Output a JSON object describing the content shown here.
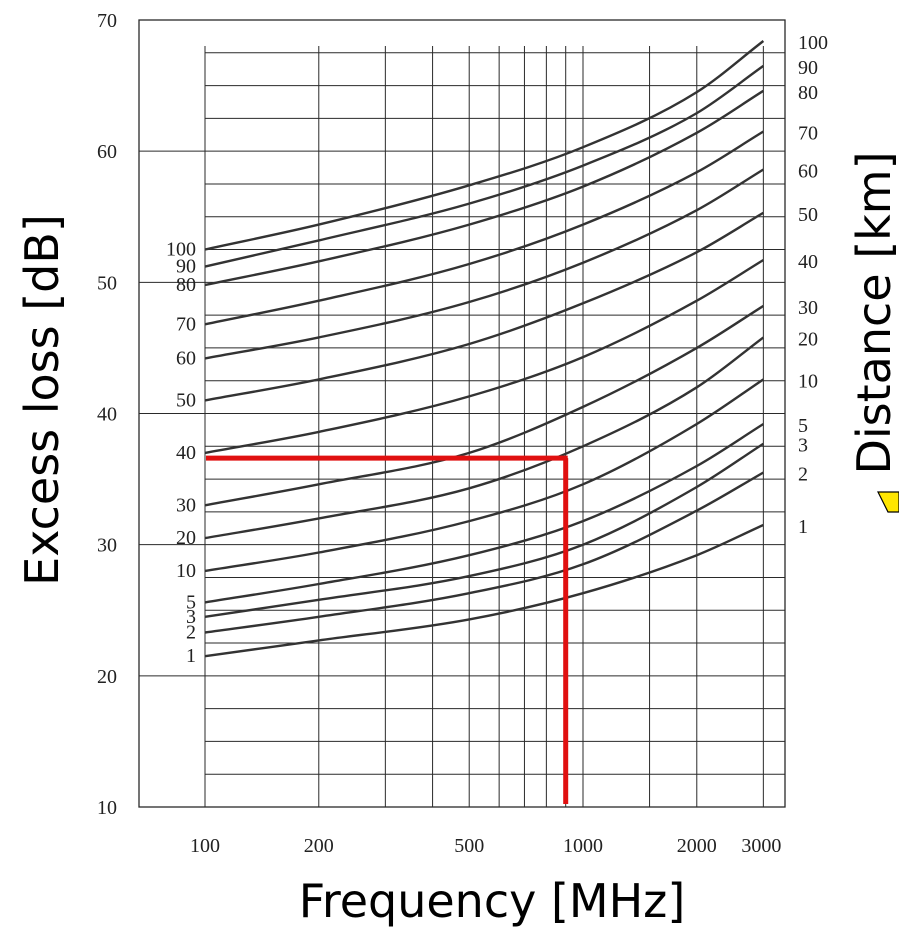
{
  "chart_data": {
    "type": "line",
    "xlabel": "Frequency [MHz]",
    "ylabel_left": "Excess loss [dB]",
    "ylabel_right": "Distance [km]",
    "x_scale": "log",
    "xlim": [
      100,
      3000
    ],
    "ylim": [
      10,
      70
    ],
    "x_ticks": [
      "100",
      "200",
      "500",
      "1000",
      "2000",
      "3000"
    ],
    "y_ticks": [
      "10",
      "20",
      "30",
      "40",
      "50",
      "60",
      "70"
    ],
    "legend_position": "curve labels at left and right ends",
    "series": [
      {
        "name": "1",
        "x": [
          100,
          200,
          500,
          1000,
          2000,
          3000
        ],
        "y": [
          21.5,
          22.7,
          24.3,
          26.3,
          29.2,
          31.5
        ]
      },
      {
        "name": "2",
        "x": [
          100,
          200,
          500,
          1000,
          2000,
          3000
        ],
        "y": [
          23.3,
          24.5,
          26.3,
          28.5,
          32.6,
          35.5
        ]
      },
      {
        "name": "3",
        "x": [
          100,
          200,
          500,
          1000,
          2000,
          3000
        ],
        "y": [
          24.5,
          25.8,
          27.6,
          30.0,
          34.4,
          37.7
        ]
      },
      {
        "name": "5",
        "x": [
          100,
          200,
          500,
          1000,
          2000,
          3000
        ],
        "y": [
          25.6,
          27.0,
          29.2,
          31.8,
          36.0,
          39.2
        ]
      },
      {
        "name": "10",
        "x": [
          100,
          200,
          500,
          1000,
          2000,
          3000
        ],
        "y": [
          28.0,
          29.4,
          31.8,
          34.6,
          39.2,
          42.6
        ]
      },
      {
        "name": "20",
        "x": [
          100,
          200,
          500,
          1000,
          2000,
          3000
        ],
        "y": [
          30.5,
          32.0,
          34.3,
          37.5,
          42.0,
          45.8
        ]
      },
      {
        "name": "30",
        "x": [
          100,
          200,
          500,
          1000,
          2000,
          3000
        ],
        "y": [
          33.0,
          34.6,
          37.0,
          40.5,
          45.0,
          48.2
        ]
      },
      {
        "name": "40",
        "x": [
          100,
          200,
          500,
          1000,
          2000,
          3000
        ],
        "y": [
          37.0,
          38.6,
          41.3,
          44.3,
          48.6,
          51.7
        ]
      },
      {
        "name": "50",
        "x": [
          100,
          200,
          500,
          1000,
          2000,
          3000
        ],
        "y": [
          41.0,
          42.6,
          45.3,
          48.4,
          52.3,
          55.3
        ]
      },
      {
        "name": "60",
        "x": [
          100,
          200,
          500,
          1000,
          2000,
          3000
        ],
        "y": [
          44.2,
          45.8,
          48.5,
          51.5,
          55.5,
          58.6
        ]
      },
      {
        "name": "70",
        "x": [
          100,
          200,
          500,
          1000,
          2000,
          3000
        ],
        "y": [
          46.8,
          48.6,
          51.4,
          54.4,
          58.4,
          61.5
        ]
      },
      {
        "name": "80",
        "x": [
          100,
          200,
          500,
          1000,
          2000,
          3000
        ],
        "y": [
          49.8,
          51.6,
          54.4,
          57.3,
          61.4,
          64.6
        ]
      },
      {
        "name": "90",
        "x": [
          100,
          200,
          500,
          1000,
          2000,
          3000
        ],
        "y": [
          51.2,
          53.2,
          56.0,
          58.9,
          62.9,
          66.5
        ]
      },
      {
        "name": "100",
        "x": [
          100,
          200,
          500,
          1000,
          2000,
          3000
        ],
        "y": [
          52.5,
          54.4,
          57.4,
          60.3,
          64.5,
          68.4
        ]
      }
    ],
    "left_curve_labels": [
      "100",
      "90",
      "80",
      "70",
      "60",
      "50",
      "40",
      "30",
      "20",
      "10",
      "5",
      "3",
      "2",
      "1"
    ],
    "right_curve_labels": [
      "100",
      "90",
      "80",
      "70",
      "60",
      "50",
      "40",
      "30",
      "20",
      "10",
      "5",
      "3",
      "2",
      "1"
    ],
    "annotation": {
      "color": "#e01010",
      "frequency_mhz": 900,
      "excess_loss_db": 36.6
    }
  }
}
